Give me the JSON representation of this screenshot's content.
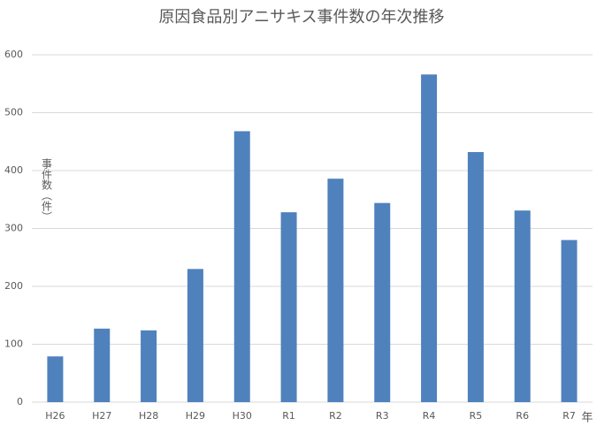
{
  "chart_data": {
    "type": "bar",
    "title": "原因食品別アニサキス事件数の年次推移",
    "y_label": "事件数（件）",
    "x_label": "年",
    "categories": [
      "H26",
      "H27",
      "H28",
      "H29",
      "H30",
      "R1",
      "R2",
      "R3",
      "R4",
      "R5",
      "R6",
      "R7"
    ],
    "values": [
      79,
      127,
      124,
      230,
      468,
      328,
      386,
      344,
      566,
      432,
      331,
      280
    ],
    "color": "#4f81bd",
    "ylim": [
      0,
      600
    ],
    "yticks": [
      0,
      100,
      200,
      300,
      400,
      500,
      600
    ],
    "grid": true
  }
}
